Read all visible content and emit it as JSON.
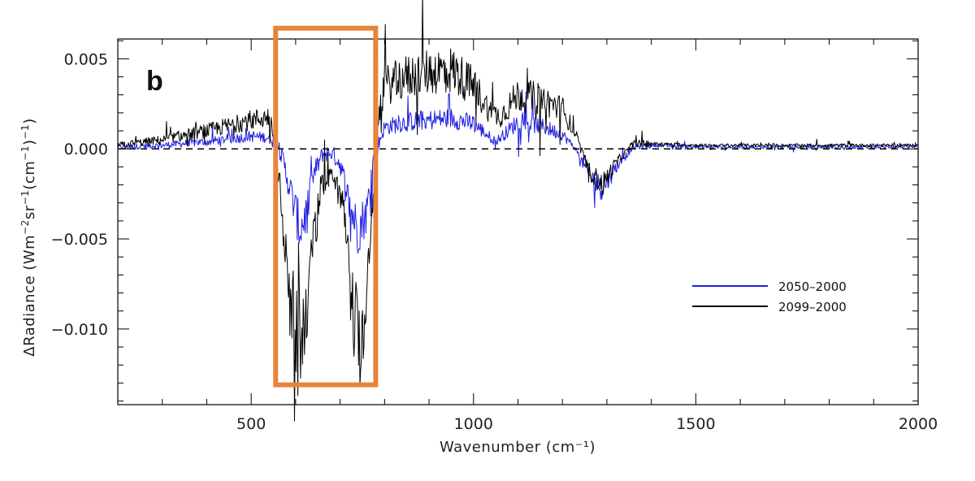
{
  "chart_data": {
    "type": "line",
    "panel_label": "b",
    "xlabel": "Wavenumber (cm⁻¹)",
    "ylabel_parts": {
      "prefix": "ΔRadiance (Wm",
      "sup1": "−2",
      "mid": "sr",
      "sup2": "−1",
      "mid2": "(cm",
      "sup3": "−1",
      "suffix": ")",
      "sup4": "−1",
      "tail": ")"
    },
    "xlim": [
      200,
      2000
    ],
    "ylim": [
      -0.0142,
      0.0061
    ],
    "xticks": [
      500,
      1000,
      1500,
      2000
    ],
    "xtick_labels": [
      "500",
      "1000",
      "1500",
      "2000"
    ],
    "yticks": [
      0.005,
      0.0,
      -0.005,
      -0.01
    ],
    "ytick_labels": [
      "0.005",
      "0.000",
      "−0.005",
      "−0.010"
    ],
    "zero_line": {
      "y": 0,
      "style": "dashed"
    },
    "highlight_box": {
      "x_range": [
        555,
        780
      ],
      "y_range": [
        -0.0131,
        0.0067
      ],
      "color": "#E8843A"
    },
    "legend": {
      "placement": "center-right"
    },
    "series": [
      {
        "name": "2050–2000",
        "color": "#1F1FE0",
        "x": [
          200,
          300,
          400,
          500,
          550,
          570,
          590,
          610,
          625,
          640,
          660,
          680,
          700,
          720,
          740,
          760,
          775,
          800,
          850,
          900,
          950,
          1000,
          1050,
          1100,
          1150,
          1200,
          1230,
          1260,
          1290,
          1320,
          1360,
          1400,
          1500,
          1600,
          1700,
          1800,
          1900,
          2000
        ],
        "y": [
          0.0001,
          0.0002,
          0.0004,
          0.0007,
          0.0006,
          -0.0005,
          -0.0025,
          -0.0045,
          -0.0035,
          -0.0015,
          -0.0003,
          -0.0002,
          -0.0008,
          -0.003,
          -0.0045,
          -0.0035,
          -0.0005,
          0.0012,
          0.0015,
          0.0016,
          0.0017,
          0.0014,
          0.0004,
          0.0015,
          0.0013,
          0.0008,
          0.0,
          -0.0015,
          -0.0022,
          -0.001,
          0.0001,
          0.0002,
          0.0001,
          0.0001,
          0.0001,
          0.0001,
          0.0001,
          0.0001
        ]
      },
      {
        "name": "2099–2000",
        "color": "#000000",
        "x": [
          200,
          300,
          400,
          500,
          545,
          565,
          585,
          600,
          615,
          635,
          655,
          680,
          700,
          720,
          735,
          750,
          765,
          780,
          790,
          800,
          850,
          900,
          950,
          1000,
          1040,
          1060,
          1100,
          1150,
          1200,
          1230,
          1260,
          1290,
          1320,
          1360,
          1400,
          1500,
          1600,
          1700,
          1800,
          1900,
          2000
        ],
        "y": [
          0.0002,
          0.0005,
          0.001,
          0.0016,
          0.0018,
          -0.002,
          -0.007,
          -0.0095,
          -0.01,
          -0.006,
          -0.002,
          -0.0012,
          -0.002,
          -0.006,
          -0.009,
          -0.0095,
          -0.005,
          -0.001,
          0.0025,
          0.0035,
          0.004,
          0.0043,
          0.0044,
          0.0035,
          0.002,
          0.0018,
          0.003,
          0.0028,
          0.0022,
          0.0008,
          -0.0012,
          -0.002,
          -0.0008,
          0.0003,
          0.0003,
          0.0002,
          0.0002,
          0.0002,
          0.0002,
          0.0002,
          0.0002
        ]
      }
    ]
  }
}
